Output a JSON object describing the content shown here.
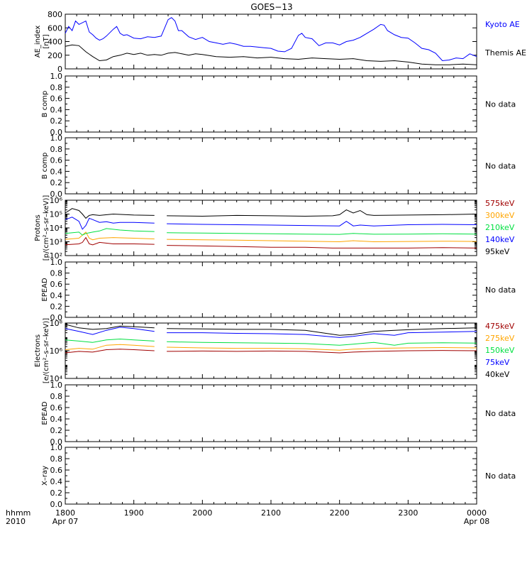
{
  "chart_data": {
    "type": "line",
    "title": "GOES−13",
    "x_tick_labels": [
      "1800",
      "1900",
      "2000",
      "2100",
      "2200",
      "2300",
      "0000"
    ],
    "x_date_start": "Apr 07",
    "x_date_end": "Apr 08",
    "x_axis_label_top": "hhmm",
    "x_axis_label_year": "2010",
    "x_range_hours": [
      0,
      6
    ],
    "panels": [
      {
        "id": "ae",
        "ylabel": "AE_index\n[nT]",
        "yscale": "linear",
        "yrange": [
          0,
          800
        ],
        "ticks": [
          "0",
          "200",
          "400",
          "600",
          "800"
        ],
        "tick_values": [
          0,
          200,
          400,
          600,
          800
        ],
        "legend_position": "right",
        "series": [
          {
            "name": "Kyoto AE",
            "color": "#0000ff",
            "x": [
              0,
              0.05,
              0.1,
              0.15,
              0.2,
              0.3,
              0.35,
              0.4,
              0.45,
              0.5,
              0.55,
              0.6,
              0.7,
              0.75,
              0.8,
              0.85,
              0.9,
              1.0,
              1.1,
              1.2,
              1.3,
              1.4,
              1.5,
              1.55,
              1.6,
              1.65,
              1.7,
              1.8,
              1.9,
              2.0,
              2.1,
              2.2,
              2.3,
              2.4,
              2.5,
              2.6,
              2.7,
              2.8,
              2.9,
              3.0,
              3.1,
              3.2,
              3.3,
              3.4,
              3.45,
              3.5,
              3.6,
              3.7,
              3.8,
              3.9,
              4.0,
              4.1,
              4.2,
              4.3,
              4.4,
              4.5,
              4.6,
              4.65,
              4.7,
              4.8,
              4.9,
              5.0,
              5.1,
              5.2,
              5.3,
              5.4,
              5.5,
              5.6,
              5.7,
              5.8,
              5.9,
              6.0
            ],
            "y": [
              520,
              620,
              560,
              700,
              650,
              700,
              540,
              500,
              450,
              420,
              440,
              480,
              580,
              620,
              520,
              490,
              500,
              450,
              440,
              470,
              460,
              480,
              720,
              750,
              700,
              560,
              560,
              470,
              430,
              460,
              400,
              380,
              360,
              380,
              360,
              330,
              330,
              320,
              310,
              300,
              260,
              250,
              300,
              490,
              520,
              460,
              440,
              340,
              380,
              380,
              350,
              400,
              420,
              460,
              520,
              580,
              650,
              640,
              560,
              500,
              460,
              450,
              380,
              300,
              280,
              230,
              120,
              130,
              160,
              150,
              220,
              180
            ]
          },
          {
            "name": "Themis AE",
            "color": "#000000",
            "x": [
              0,
              0.1,
              0.2,
              0.3,
              0.4,
              0.5,
              0.6,
              0.7,
              0.8,
              0.9,
              1.0,
              1.1,
              1.2,
              1.3,
              1.4,
              1.5,
              1.6,
              1.7,
              1.8,
              1.9,
              2.0,
              2.2,
              2.4,
              2.6,
              2.8,
              3.0,
              3.2,
              3.4,
              3.6,
              3.8,
              4.0,
              4.2,
              4.4,
              4.6,
              4.8,
              5.0,
              5.2,
              5.4,
              5.6,
              5.8,
              6.0
            ],
            "y": [
              330,
              350,
              340,
              250,
              180,
              120,
              130,
              180,
              200,
              230,
              210,
              230,
              200,
              210,
              200,
              230,
              240,
              220,
              200,
              220,
              210,
              180,
              170,
              180,
              160,
              170,
              150,
              140,
              160,
              150,
              140,
              150,
              120,
              110,
              120,
              100,
              70,
              60,
              60,
              70,
              60
            ]
          }
        ]
      },
      {
        "id": "b1",
        "ylabel": "B comp",
        "yscale": "linear",
        "yrange": [
          0,
          1
        ],
        "ticks": [
          "0.0",
          "0.2",
          "0.4",
          "0.6",
          "0.8",
          "1.0"
        ],
        "tick_values": [
          0,
          0.2,
          0.4,
          0.6,
          0.8,
          1.0
        ],
        "minor_tick_values": [
          0.1,
          0.3,
          0.5,
          0.7,
          0.9
        ],
        "note": "No data"
      },
      {
        "id": "b2",
        "ylabel": "B comp",
        "yscale": "linear",
        "yrange": [
          0,
          1
        ],
        "ticks": [
          "0.0",
          "0.2",
          "0.4",
          "0.6",
          "0.8",
          "1.0"
        ],
        "tick_values": [
          0,
          0.2,
          0.4,
          0.6,
          0.8,
          1.0
        ],
        "minor_tick_values": [
          0.1,
          0.3,
          0.5,
          0.7,
          0.9
        ],
        "note": "No data"
      },
      {
        "id": "protons",
        "ylabel": "Protons\n[p/(cm²–s–sr–keV)]",
        "yscale": "log",
        "yrange": [
          100,
          1000000
        ],
        "ticks": [
          "10²",
          "10³",
          "10⁴",
          "10⁵",
          "10⁶"
        ],
        "tick_values": [
          100,
          1000,
          10000,
          100000,
          1000000
        ],
        "legend_position": "right",
        "data_gap_hours": [
          1.3,
          1.48
        ],
        "series": [
          {
            "name": "575keV",
            "color": "#a00000",
            "x": [
              0,
              0.2,
              0.25,
              0.3,
              0.35,
              0.4,
              0.5,
              0.7,
              1.0,
              1.3,
              1.48,
              2.0,
              2.5,
              3.0,
              3.5,
              3.9,
              4.0,
              4.2,
              4.5,
              5.0,
              5.5,
              6.0
            ],
            "y": [
              600,
              700,
              900,
              2000,
              700,
              600,
              900,
              700,
              700,
              650,
              550,
              500,
              450,
              400,
              400,
              350,
              350,
              350,
              350,
              350,
              380,
              350
            ]
          },
          {
            "name": "300keV",
            "color": "#ffa500",
            "x": [
              0,
              0.2,
              0.3,
              0.35,
              0.4,
              0.5,
              0.7,
              1.0,
              1.3,
              1.48,
              2.0,
              2.5,
              3.0,
              3.5,
              4.0,
              4.2,
              4.5,
              5.0,
              5.5,
              6.0
            ],
            "y": [
              1500,
              1800,
              5000,
              1800,
              1400,
              1800,
              2000,
              1800,
              1600,
              1500,
              1400,
              1300,
              1200,
              1100,
              1000,
              1200,
              1000,
              1050,
              1100,
              1050
            ]
          },
          {
            "name": "210keV",
            "color": "#00e040",
            "x": [
              0,
              0.2,
              0.25,
              0.3,
              0.4,
              0.5,
              0.6,
              0.8,
              1.0,
              1.3,
              1.48,
              2.0,
              2.5,
              3.0,
              3.5,
              4.0,
              4.2,
              4.5,
              5.0,
              5.5,
              6.0
            ],
            "y": [
              4000,
              5000,
              3000,
              4000,
              5000,
              6000,
              9000,
              7000,
              6000,
              5500,
              4500,
              4200,
              4000,
              3800,
              3600,
              3400,
              4000,
              3500,
              3600,
              3800,
              3600
            ]
          },
          {
            "name": "140keV",
            "color": "#0000ff",
            "x": [
              0,
              0.1,
              0.2,
              0.25,
              0.3,
              0.35,
              0.4,
              0.5,
              0.6,
              0.7,
              0.8,
              1.0,
              1.3,
              1.48,
              2.0,
              2.5,
              3.0,
              3.5,
              4.0,
              4.1,
              4.2,
              4.3,
              4.5,
              5.0,
              5.5,
              6.0
            ],
            "y": [
              40000,
              60000,
              30000,
              8000,
              15000,
              50000,
              40000,
              25000,
              28000,
              22000,
              25000,
              25000,
              22000,
              20000,
              18000,
              17000,
              16000,
              15000,
              14000,
              30000,
              14000,
              16000,
              14000,
              17000,
              18000,
              17000
            ]
          },
          {
            "name": "95keV",
            "color": "#000000",
            "x": [
              0,
              0.1,
              0.2,
              0.25,
              0.3,
              0.35,
              0.4,
              0.5,
              0.7,
              1.0,
              1.3,
              1.48,
              2.0,
              2.5,
              3.0,
              3.5,
              3.9,
              4.0,
              4.1,
              4.2,
              4.3,
              4.4,
              4.5,
              5.0,
              5.5,
              6.0
            ],
            "y": [
              120000,
              250000,
              180000,
              100000,
              50000,
              80000,
              90000,
              80000,
              100000,
              85000,
              80000,
              75000,
              70000,
              80000,
              75000,
              70000,
              75000,
              90000,
              200000,
              120000,
              180000,
              90000,
              80000,
              85000,
              90000,
              100000
            ]
          }
        ]
      },
      {
        "id": "epead1",
        "ylabel": "EPEAD",
        "yscale": "linear",
        "yrange": [
          0,
          1
        ],
        "ticks": [
          "0.0",
          "0.2",
          "0.4",
          "0.6",
          "0.8",
          "1.0"
        ],
        "tick_values": [
          0,
          0.2,
          0.4,
          0.6,
          0.8,
          1.0
        ],
        "minor_tick_values": [
          0.1,
          0.3,
          0.5,
          0.7,
          0.9
        ],
        "note": "No data"
      },
      {
        "id": "electrons",
        "ylabel": "Electrons\n[e/(cm²–s–sr–keV)]",
        "yscale": "log",
        "yrange": [
          10000,
          100000000
        ],
        "ticks": [
          "10⁴",
          "10⁶",
          "10⁸"
        ],
        "tick_values": [
          10000,
          1000000,
          100000000
        ],
        "legend_position": "right",
        "data_gap_hours": [
          1.3,
          1.48
        ],
        "series": [
          {
            "name": "475keV",
            "color": "#a00000",
            "x": [
              0,
              0.2,
              0.4,
              0.6,
              0.8,
              1.0,
              1.3,
              1.48,
              2.0,
              2.5,
              3.0,
              3.5,
              4.0,
              4.2,
              4.5,
              5.0,
              5.5,
              6.0
            ],
            "y": [
              700000,
              900000,
              800000,
              1200000,
              1300000,
              1200000,
              1000000,
              900000,
              950000,
              900000,
              950000,
              900000,
              700000,
              800000,
              900000,
              1000000,
              1050000,
              1000000
            ]
          },
          {
            "name": "275keV",
            "color": "#ffa500",
            "x": [
              0,
              0.2,
              0.4,
              0.6,
              0.8,
              1.0,
              1.3,
              1.48,
              2.0,
              2.5,
              3.0,
              3.5,
              4.0,
              4.2,
              4.5,
              5.0,
              5.5,
              6.0
            ],
            "y": [
              1200000,
              1500000,
              1300000,
              2500000,
              2800000,
              2500000,
              2000000,
              1800000,
              1600000,
              1500000,
              1500000,
              1400000,
              1100000,
              1300000,
              1500000,
              1600000,
              1700000,
              1600000
            ]
          },
          {
            "name": "150keV",
            "color": "#00e040",
            "x": [
              0,
              0.2,
              0.4,
              0.6,
              0.8,
              1.0,
              1.3,
              1.48,
              2.0,
              2.5,
              3.0,
              3.5,
              4.0,
              4.2,
              4.5,
              4.8,
              5.0,
              5.5,
              6.0
            ],
            "y": [
              6000000,
              5000000,
              4000000,
              6000000,
              7000000,
              6000000,
              5000000,
              4500000,
              4000000,
              3800000,
              3600000,
              3300000,
              2500000,
              3000000,
              4000000,
              2500000,
              3500000,
              3800000,
              3600000
            ]
          },
          {
            "name": "75keV",
            "color": "#0000ff",
            "x": [
              0,
              0.2,
              0.4,
              0.6,
              0.8,
              1.0,
              1.3,
              1.48,
              2.0,
              2.5,
              3.0,
              3.5,
              4.0,
              4.2,
              4.5,
              4.8,
              5.0,
              5.5,
              6.0
            ],
            "y": [
              40000000,
              25000000,
              15000000,
              30000000,
              50000000,
              40000000,
              25000000,
              20000000,
              20000000,
              18000000,
              17000000,
              15000000,
              9000000,
              11000000,
              17000000,
              13000000,
              20000000,
              22000000,
              25000000
            ]
          },
          {
            "name": "40keV",
            "color": "#000000",
            "x": [
              0,
              0.2,
              0.4,
              0.6,
              0.8,
              1.0,
              1.3,
              1.48,
              2.0,
              2.5,
              3.0,
              3.5,
              4.0,
              4.2,
              4.5,
              4.8,
              5.0,
              5.5,
              6.0
            ],
            "y": [
              80000000,
              45000000,
              35000000,
              40000000,
              60000000,
              55000000,
              45000000,
              40000000,
              38000000,
              35000000,
              35000000,
              30000000,
              13000000,
              15000000,
              25000000,
              30000000,
              33000000,
              40000000,
              45000000
            ]
          }
        ]
      },
      {
        "id": "epead2",
        "ylabel": "EPEAD",
        "yscale": "linear",
        "yrange": [
          0,
          1
        ],
        "ticks": [
          "0.0",
          "0.2",
          "0.4",
          "0.6",
          "0.8",
          "1.0"
        ],
        "tick_values": [
          0,
          0.2,
          0.4,
          0.6,
          0.8,
          1.0
        ],
        "minor_tick_values": [
          0.1,
          0.3,
          0.5,
          0.7,
          0.9
        ],
        "note": "No data"
      },
      {
        "id": "xray",
        "ylabel": "X–ray",
        "yscale": "linear",
        "yrange": [
          0,
          1
        ],
        "ticks": [
          "0.0",
          "0.2",
          "0.4",
          "0.6",
          "0.8",
          "1.0"
        ],
        "tick_values": [
          0,
          0.2,
          0.4,
          0.6,
          0.8,
          1.0
        ],
        "minor_tick_values": [
          0.1,
          0.3,
          0.5,
          0.7,
          0.9
        ],
        "note": "No data"
      }
    ]
  }
}
